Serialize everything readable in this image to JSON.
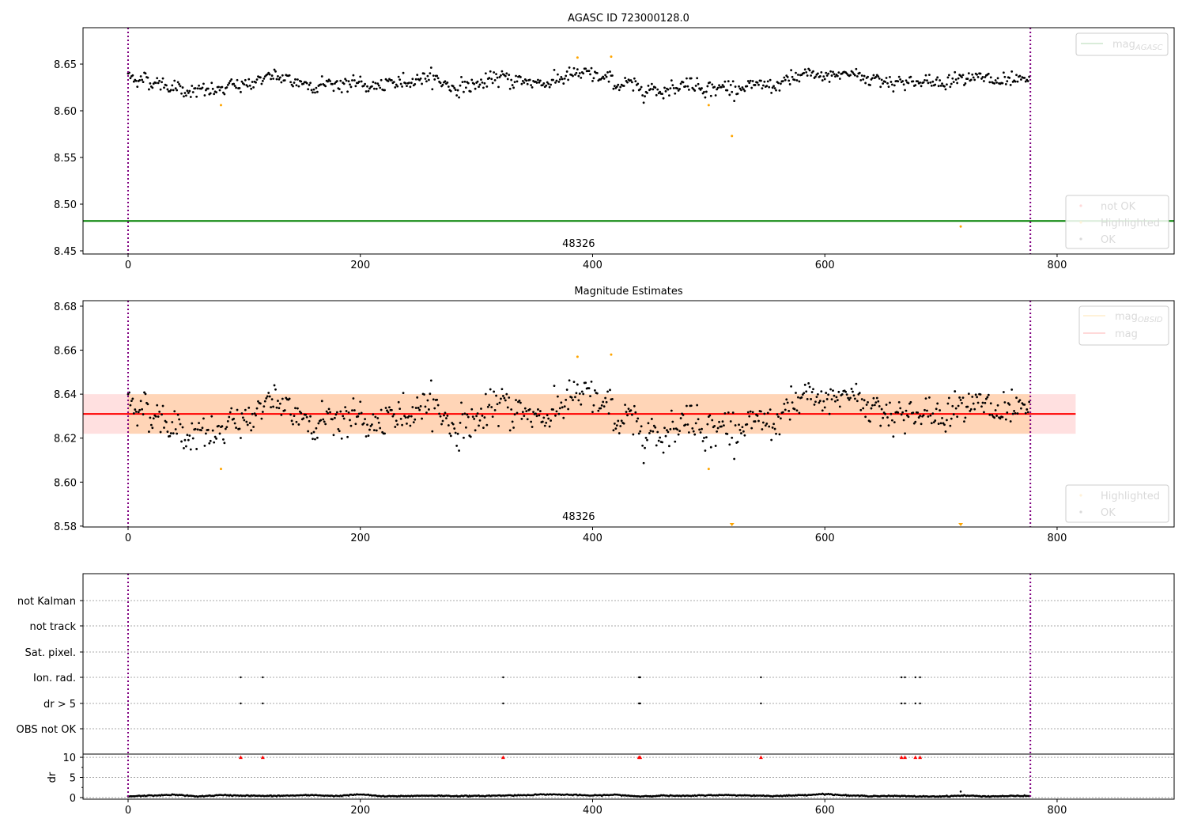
{
  "chart_data": [
    {
      "type": "scatter",
      "title": "AGASC ID 723000128.0",
      "xlim": [
        -38.8,
        900.8
      ],
      "ylim": [
        8.4466,
        8.689
      ],
      "xticks": [
        0,
        200,
        400,
        600,
        800
      ],
      "yticks": [
        8.45,
        8.5,
        8.55,
        8.6,
        8.65
      ],
      "ytick_labels": [
        "8.45",
        "8.50",
        "8.55",
        "8.60",
        "8.65"
      ],
      "annotation": "48326",
      "mag_agasc": 8.482,
      "obs_bounds": [
        0,
        777
      ],
      "trend_step": 20,
      "trend": [
        8.637,
        8.632,
        8.625,
        8.62,
        8.622,
        8.628,
        8.637,
        8.632,
        8.628,
        8.63,
        8.628,
        8.625,
        8.633,
        8.637,
        8.625,
        8.628,
        8.635,
        8.632,
        8.63,
        8.638,
        8.638,
        8.63,
        8.625,
        8.622,
        8.63,
        8.625,
        8.625,
        8.625,
        8.628,
        8.637,
        8.637,
        8.64,
        8.635,
        8.632,
        8.63,
        8.63,
        8.64,
        8.632,
        8.63,
        8.63
      ],
      "noise_sd": 0.0065,
      "n_points": 777,
      "highlighted": [
        [
          80,
          8.606
        ],
        [
          387,
          8.657
        ],
        [
          416,
          8.658
        ],
        [
          500,
          8.606
        ],
        [
          520,
          8.573
        ],
        [
          717,
          8.476
        ]
      ],
      "legend_lines": [
        {
          "label": "mag",
          "sub": "AGASC",
          "color": "#008000"
        }
      ],
      "legend_points": [
        {
          "label": "not OK",
          "color": "#ff0000"
        },
        {
          "label": "Highlighted",
          "color": "#ffa500"
        },
        {
          "label": "OK",
          "color": "#000000"
        }
      ]
    },
    {
      "type": "scatter",
      "title": "Magnitude Estimates",
      "xlim": [
        -38.8,
        900.8
      ],
      "ylim": [
        8.5796,
        8.6825
      ],
      "xticks": [
        0,
        200,
        400,
        600,
        800
      ],
      "yticks": [
        8.58,
        8.6,
        8.62,
        8.64,
        8.66,
        8.68
      ],
      "ytick_labels": [
        "8.58",
        "8.60",
        "8.62",
        "8.64",
        "8.66",
        "8.68"
      ],
      "annotation": "48326",
      "mag_mean": 8.631,
      "mag_band": [
        8.622,
        8.64
      ],
      "band_extent": [
        -38.8,
        816
      ],
      "legend_lines": [
        {
          "label": "mag",
          "sub": "OBSID",
          "color": "#ffa500"
        },
        {
          "label": "mag",
          "sub": "",
          "color": "#ff0000"
        }
      ],
      "legend_points": [
        {
          "label": "Highlighted",
          "color": "#ffa500"
        },
        {
          "label": "OK",
          "color": "#000000"
        }
      ]
    },
    {
      "type": "scatter",
      "title": "",
      "categories": [
        "not Kalman",
        "not track",
        "Sat. pixel.",
        "Ion. rad.",
        "dr > 5",
        "OBS not OK"
      ],
      "flag_times": {
        "Ion. rad.": [
          97,
          116,
          323,
          440,
          441,
          545,
          666,
          669,
          678,
          682
        ],
        "dr > 5": [
          97,
          116,
          323,
          440,
          441,
          545,
          666,
          669,
          678,
          682
        ]
      },
      "dr_ylabel": "dr",
      "dr_ylim": [
        -0.4,
        10.8
      ],
      "dr_yticks": [
        0,
        5,
        10
      ],
      "dr_ytick_labels": [
        "0",
        "5",
        "10"
      ],
      "dr_clipped_times": [
        97,
        116,
        323,
        440,
        441,
        545,
        666,
        669,
        678,
        682
      ],
      "dr_trend": [
        0.3,
        0.5,
        0.7,
        0.3,
        0.6,
        0.5,
        0.4,
        0.5,
        0.6,
        0.4,
        0.8,
        0.3,
        0.4,
        0.5,
        0.4,
        0.4,
        0.5,
        0.6,
        0.8,
        0.7,
        0.5,
        0.7,
        0.3,
        0.5,
        0.4,
        0.6,
        0.6,
        0.5,
        0.4,
        0.6,
        0.9,
        0.5,
        0.4,
        0.4,
        0.3,
        0.3,
        0.5,
        0.3,
        0.4,
        0.4
      ],
      "dr_spike": [
        717,
        1.5
      ],
      "xticks": [
        0,
        200,
        400,
        600,
        800
      ]
    }
  ]
}
